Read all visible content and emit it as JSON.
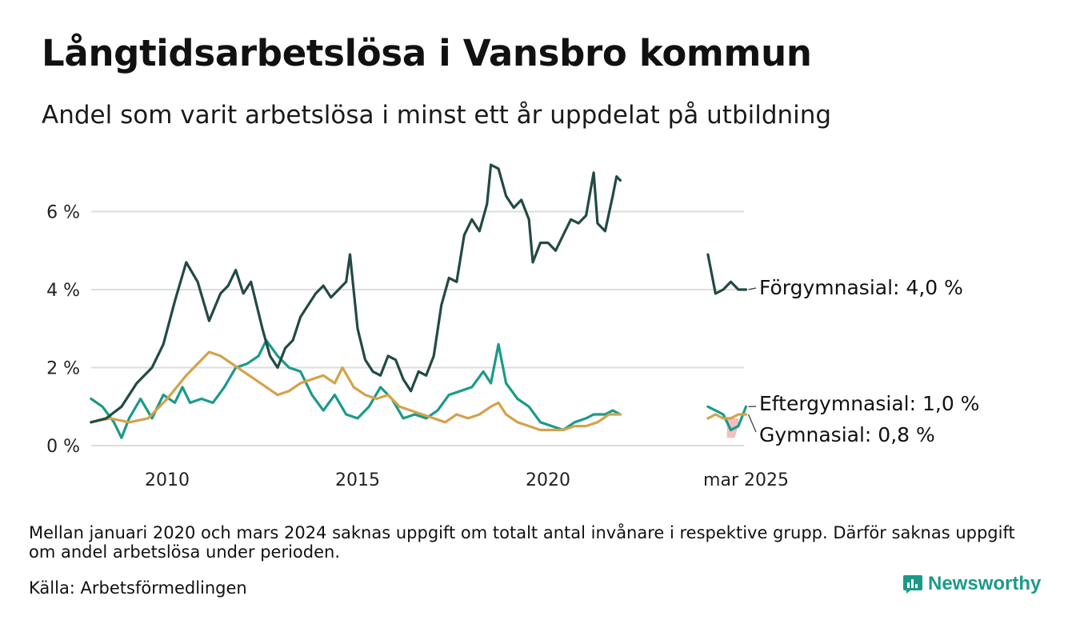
{
  "title": "Långtidsarbetslösa i Vansbro kommun",
  "subtitle": "Andel som varit arbetslösa i minst ett år uppdelat på utbildning",
  "note": "Mellan januari 2020 och mars 2024 saknas uppgift om totalt antal invånare i respektive grupp. Därför saknas uppgift om andel arbetslösa under perioden.",
  "source": "Källa: Arbetsförmedlingen",
  "brand": "Newsworthy",
  "colors": {
    "forgymnasial": "#234a45",
    "eftergymnasial": "#1b9a8a",
    "gymnasial": "#d4a24c",
    "gymnasial_band": "#f2b8b8",
    "grid": "#dddddd",
    "brand": "#1b9a8a"
  },
  "chart_data": {
    "type": "line",
    "title": "Långtidsarbetslösa i Vansbro kommun",
    "subtitle": "Andel som varit arbetslösa i minst ett år uppdelat på utbildning",
    "x_axis": {
      "ticks": [
        "2010",
        "2015",
        "2020",
        "mar 2025"
      ]
    },
    "y_axis": {
      "ticks": [
        "0 %",
        "2 %",
        "4 %",
        "6 %"
      ],
      "range": [
        0,
        7.4
      ]
    },
    "grid": "horizontal",
    "series": [
      {
        "name": "Förgymnasial",
        "end_label": "Förgymnasial: 4,0 %",
        "color": "#234a45",
        "segment1": [
          [
            2008.0,
            0.6
          ],
          [
            2008.4,
            0.7
          ],
          [
            2008.8,
            1.0
          ],
          [
            2009.2,
            1.6
          ],
          [
            2009.6,
            2.0
          ],
          [
            2009.9,
            2.6
          ],
          [
            2010.2,
            3.7
          ],
          [
            2010.5,
            4.7
          ],
          [
            2010.8,
            4.2
          ],
          [
            2011.1,
            3.2
          ],
          [
            2011.4,
            3.9
          ],
          [
            2011.6,
            4.1
          ],
          [
            2011.8,
            4.5
          ],
          [
            2012.0,
            3.9
          ],
          [
            2012.2,
            4.2
          ],
          [
            2012.5,
            3.0
          ],
          [
            2012.7,
            2.3
          ],
          [
            2012.9,
            2.0
          ],
          [
            2013.1,
            2.5
          ],
          [
            2013.3,
            2.7
          ],
          [
            2013.5,
            3.3
          ],
          [
            2013.7,
            3.6
          ],
          [
            2013.9,
            3.9
          ],
          [
            2014.1,
            4.1
          ],
          [
            2014.3,
            3.8
          ],
          [
            2014.5,
            4.0
          ],
          [
            2014.7,
            4.2
          ],
          [
            2014.8,
            4.9
          ],
          [
            2015.0,
            3.0
          ],
          [
            2015.2,
            2.2
          ],
          [
            2015.4,
            1.9
          ],
          [
            2015.6,
            1.8
          ],
          [
            2015.8,
            2.3
          ],
          [
            2016.0,
            2.2
          ],
          [
            2016.2,
            1.7
          ],
          [
            2016.4,
            1.4
          ],
          [
            2016.6,
            1.9
          ],
          [
            2016.8,
            1.8
          ],
          [
            2017.0,
            2.3
          ],
          [
            2017.2,
            3.6
          ],
          [
            2017.4,
            4.3
          ],
          [
            2017.6,
            4.2
          ],
          [
            2017.8,
            5.4
          ],
          [
            2018.0,
            5.8
          ],
          [
            2018.2,
            5.5
          ],
          [
            2018.4,
            6.2
          ],
          [
            2018.5,
            7.2
          ],
          [
            2018.7,
            7.1
          ],
          [
            2018.9,
            6.4
          ],
          [
            2019.1,
            6.1
          ],
          [
            2019.3,
            6.3
          ],
          [
            2019.5,
            5.8
          ],
          [
            2019.6,
            4.7
          ],
          [
            2019.8,
            5.2
          ],
          [
            2020.0,
            5.2
          ],
          [
            2020.2,
            5.0
          ],
          [
            2020.4,
            5.4
          ],
          [
            2020.6,
            5.8
          ],
          [
            2020.8,
            5.7
          ],
          [
            2021.0,
            5.9
          ],
          [
            2021.2,
            7.0
          ],
          [
            2021.3,
            5.7
          ],
          [
            2021.5,
            5.5
          ],
          [
            2021.7,
            6.4
          ],
          [
            2021.8,
            6.9
          ],
          [
            2021.9,
            6.8
          ]
        ],
        "segment2": [
          [
            2024.2,
            4.9
          ],
          [
            2024.4,
            3.9
          ],
          [
            2024.6,
            4.0
          ],
          [
            2024.8,
            4.2
          ],
          [
            2025.0,
            4.0
          ],
          [
            2025.2,
            4.0
          ]
        ]
      },
      {
        "name": "Eftergymnasial",
        "end_label": "Eftergymnasial: 1,0 %",
        "color": "#1b9a8a",
        "segment1": [
          [
            2008.0,
            1.2
          ],
          [
            2008.3,
            1.0
          ],
          [
            2008.6,
            0.6
          ],
          [
            2008.8,
            0.2
          ],
          [
            2009.0,
            0.7
          ],
          [
            2009.3,
            1.2
          ],
          [
            2009.6,
            0.7
          ],
          [
            2009.9,
            1.3
          ],
          [
            2010.2,
            1.1
          ],
          [
            2010.4,
            1.5
          ],
          [
            2010.6,
            1.1
          ],
          [
            2010.9,
            1.2
          ],
          [
            2011.2,
            1.1
          ],
          [
            2011.5,
            1.5
          ],
          [
            2011.8,
            2.0
          ],
          [
            2012.1,
            2.1
          ],
          [
            2012.4,
            2.3
          ],
          [
            2012.6,
            2.7
          ],
          [
            2012.9,
            2.3
          ],
          [
            2013.2,
            2.0
          ],
          [
            2013.5,
            1.9
          ],
          [
            2013.8,
            1.3
          ],
          [
            2014.1,
            0.9
          ],
          [
            2014.4,
            1.3
          ],
          [
            2014.7,
            0.8
          ],
          [
            2015.0,
            0.7
          ],
          [
            2015.3,
            1.0
          ],
          [
            2015.6,
            1.5
          ],
          [
            2015.9,
            1.2
          ],
          [
            2016.2,
            0.7
          ],
          [
            2016.5,
            0.8
          ],
          [
            2016.8,
            0.7
          ],
          [
            2017.1,
            0.9
          ],
          [
            2017.4,
            1.3
          ],
          [
            2017.7,
            1.4
          ],
          [
            2018.0,
            1.5
          ],
          [
            2018.3,
            1.9
          ],
          [
            2018.5,
            1.6
          ],
          [
            2018.7,
            2.6
          ],
          [
            2018.9,
            1.6
          ],
          [
            2019.2,
            1.2
          ],
          [
            2019.5,
            1.0
          ],
          [
            2019.8,
            0.6
          ],
          [
            2020.1,
            0.5
          ],
          [
            2020.4,
            0.4
          ],
          [
            2020.7,
            0.6
          ],
          [
            2021.0,
            0.7
          ],
          [
            2021.2,
            0.8
          ],
          [
            2021.5,
            0.8
          ],
          [
            2021.7,
            0.9
          ],
          [
            2021.9,
            0.8
          ]
        ],
        "segment2": [
          [
            2024.2,
            1.0
          ],
          [
            2024.4,
            0.9
          ],
          [
            2024.6,
            0.8
          ],
          [
            2024.8,
            0.4
          ],
          [
            2025.0,
            0.5
          ],
          [
            2025.2,
            1.0
          ]
        ]
      },
      {
        "name": "Gymnasial",
        "end_label": "Gymnasial: 0,8 %",
        "color": "#d4a24c",
        "segment1": [
          [
            2008.0,
            0.6
          ],
          [
            2008.5,
            0.7
          ],
          [
            2009.0,
            0.6
          ],
          [
            2009.5,
            0.7
          ],
          [
            2010.0,
            1.2
          ],
          [
            2010.5,
            1.8
          ],
          [
            2010.8,
            2.1
          ],
          [
            2011.1,
            2.4
          ],
          [
            2011.4,
            2.3
          ],
          [
            2011.7,
            2.1
          ],
          [
            2012.0,
            1.9
          ],
          [
            2012.3,
            1.7
          ],
          [
            2012.6,
            1.5
          ],
          [
            2012.9,
            1.3
          ],
          [
            2013.2,
            1.4
          ],
          [
            2013.5,
            1.6
          ],
          [
            2013.8,
            1.7
          ],
          [
            2014.1,
            1.8
          ],
          [
            2014.4,
            1.6
          ],
          [
            2014.6,
            2.0
          ],
          [
            2014.9,
            1.5
          ],
          [
            2015.2,
            1.3
          ],
          [
            2015.5,
            1.2
          ],
          [
            2015.8,
            1.3
          ],
          [
            2016.1,
            1.0
          ],
          [
            2016.4,
            0.9
          ],
          [
            2016.7,
            0.8
          ],
          [
            2017.0,
            0.7
          ],
          [
            2017.3,
            0.6
          ],
          [
            2017.6,
            0.8
          ],
          [
            2017.9,
            0.7
          ],
          [
            2018.2,
            0.8
          ],
          [
            2018.5,
            1.0
          ],
          [
            2018.7,
            1.1
          ],
          [
            2018.9,
            0.8
          ],
          [
            2019.2,
            0.6
          ],
          [
            2019.5,
            0.5
          ],
          [
            2019.8,
            0.4
          ],
          [
            2020.1,
            0.4
          ],
          [
            2020.4,
            0.4
          ],
          [
            2020.7,
            0.5
          ],
          [
            2021.0,
            0.5
          ],
          [
            2021.3,
            0.6
          ],
          [
            2021.6,
            0.8
          ],
          [
            2021.9,
            0.8
          ]
        ],
        "segment2": [
          [
            2024.2,
            0.7
          ],
          [
            2024.4,
            0.8
          ],
          [
            2024.6,
            0.7
          ],
          [
            2024.8,
            0.7
          ],
          [
            2025.0,
            0.8
          ],
          [
            2025.2,
            0.8
          ]
        ],
        "band_note": "light red band below Gymnasial near mar 2025",
        "band": [
          [
            2024.7,
            0.7,
            0.2
          ],
          [
            2024.8,
            0.7,
            0.2
          ],
          [
            2024.9,
            0.7,
            0.2
          ],
          [
            2025.0,
            0.7,
            0.5
          ]
        ]
      }
    ]
  }
}
